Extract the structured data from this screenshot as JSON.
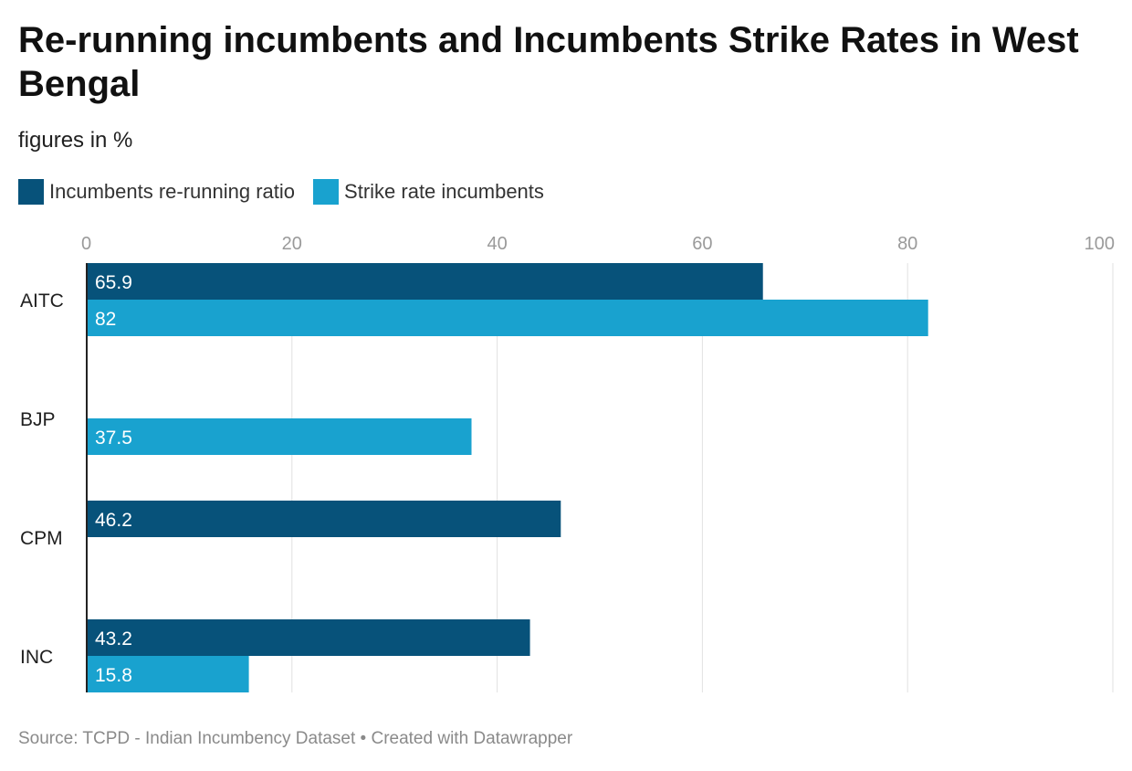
{
  "header": {
    "title": "Re-running incumbents and Incumbents Strike Rates in West Bengal",
    "subtitle": "figures in %"
  },
  "legend": [
    {
      "label": "Incumbents re-running ratio",
      "color": "#07527a"
    },
    {
      "label": "Strike rate incumbents",
      "color": "#19a2cf"
    }
  ],
  "footer": {
    "source": "Source: TCPD - Indian Incumbency Dataset • Created with Datawrapper"
  },
  "chart_data": {
    "type": "bar",
    "orientation": "horizontal",
    "title": "Re-running incumbents and Incumbents Strike Rates in West Bengal",
    "subtitle": "figures in %",
    "categories": [
      "AITC",
      "BJP",
      "CPM",
      "INC"
    ],
    "series": [
      {
        "name": "Incumbents re-running ratio",
        "color": "#07527a",
        "values": [
          65.9,
          null,
          46.2,
          43.2
        ]
      },
      {
        "name": "Strike rate incumbents",
        "color": "#19a2cf",
        "values": [
          82,
          37.5,
          null,
          15.8
        ]
      }
    ],
    "xlim": [
      0,
      100
    ],
    "xticks": [
      0,
      20,
      40,
      60,
      80,
      100
    ],
    "grid": true,
    "xlabel": "",
    "ylabel": "",
    "legend_position": "top-left"
  }
}
